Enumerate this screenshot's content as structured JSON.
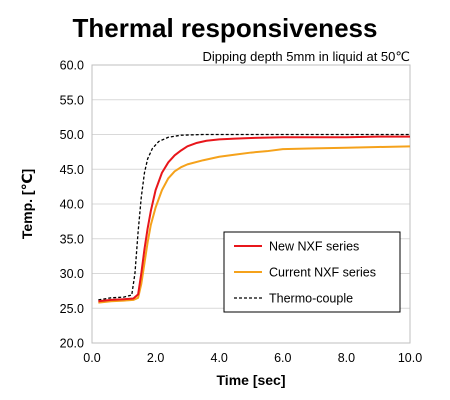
{
  "chart_data": {
    "type": "line",
    "title": "Thermal responsiveness",
    "subtitle": "Dipping depth 5mm in liquid at 50℃",
    "xlabel": "Time [sec]",
    "ylabel": "Temp. [℃]",
    "xlim": [
      0,
      10
    ],
    "ylim": [
      20,
      60
    ],
    "x_ticks": [
      "0.0",
      "2.0",
      "4.0",
      "6.0",
      "8.0",
      "10.0"
    ],
    "y_ticks": [
      "20.0",
      "25.0",
      "30.0",
      "35.0",
      "40.0",
      "45.0",
      "50.0",
      "55.0",
      "60.0"
    ],
    "grid": "horizontal",
    "legend_position": "bottom-right",
    "series": [
      {
        "name": "New NXF series",
        "color": "#e8161b",
        "style": "solid",
        "points": [
          [
            0.2,
            26.0
          ],
          [
            0.6,
            26.2
          ],
          [
            1.0,
            26.3
          ],
          [
            1.3,
            26.4
          ],
          [
            1.45,
            27.0
          ],
          [
            1.55,
            30.0
          ],
          [
            1.65,
            33.5
          ],
          [
            1.75,
            36.5
          ],
          [
            1.85,
            39.0
          ],
          [
            2.0,
            42.0
          ],
          [
            2.2,
            44.5
          ],
          [
            2.4,
            46.0
          ],
          [
            2.6,
            47.0
          ],
          [
            2.8,
            47.7
          ],
          [
            3.0,
            48.3
          ],
          [
            3.3,
            48.8
          ],
          [
            3.6,
            49.1
          ],
          [
            4.0,
            49.3
          ],
          [
            4.5,
            49.4
          ],
          [
            5.0,
            49.5
          ],
          [
            6.0,
            49.6
          ],
          [
            7.0,
            49.6
          ],
          [
            8.0,
            49.6
          ],
          [
            9.0,
            49.7
          ],
          [
            10.0,
            49.7
          ]
        ]
      },
      {
        "name": "Current NXF series",
        "color": "#f5a21b",
        "style": "solid",
        "points": [
          [
            0.2,
            25.8
          ],
          [
            0.6,
            26.0
          ],
          [
            1.0,
            26.1
          ],
          [
            1.3,
            26.2
          ],
          [
            1.45,
            26.5
          ],
          [
            1.55,
            28.5
          ],
          [
            1.65,
            31.5
          ],
          [
            1.75,
            34.5
          ],
          [
            1.85,
            37.0
          ],
          [
            2.0,
            39.5
          ],
          [
            2.2,
            42.0
          ],
          [
            2.4,
            43.7
          ],
          [
            2.6,
            44.7
          ],
          [
            2.8,
            45.3
          ],
          [
            3.0,
            45.7
          ],
          [
            3.5,
            46.3
          ],
          [
            4.0,
            46.8
          ],
          [
            4.5,
            47.1
          ],
          [
            5.0,
            47.4
          ],
          [
            5.5,
            47.6
          ],
          [
            6.0,
            47.9
          ],
          [
            7.0,
            48.0
          ],
          [
            8.0,
            48.1
          ],
          [
            9.0,
            48.2
          ],
          [
            10.0,
            48.3
          ]
        ]
      },
      {
        "name": "Thermo-couple",
        "color": "#000000",
        "style": "dashed",
        "points": [
          [
            0.2,
            26.2
          ],
          [
            0.6,
            26.5
          ],
          [
            1.0,
            26.6
          ],
          [
            1.25,
            26.9
          ],
          [
            1.35,
            30.0
          ],
          [
            1.45,
            36.0
          ],
          [
            1.55,
            41.0
          ],
          [
            1.65,
            44.5
          ],
          [
            1.75,
            46.5
          ],
          [
            1.9,
            48.0
          ],
          [
            2.1,
            49.0
          ],
          [
            2.4,
            49.6
          ],
          [
            2.8,
            49.9
          ],
          [
            3.5,
            50.0
          ],
          [
            5.0,
            50.0
          ],
          [
            7.0,
            50.0
          ],
          [
            10.0,
            50.0
          ]
        ]
      }
    ]
  }
}
